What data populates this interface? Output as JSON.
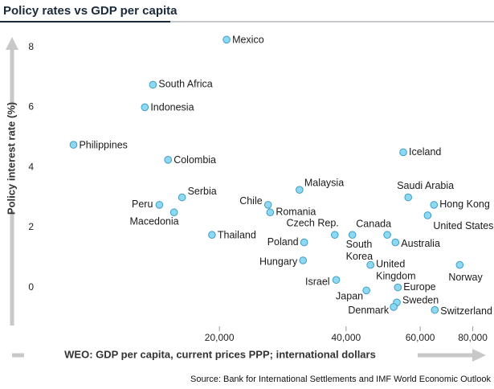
{
  "chart_data": {
    "type": "scatter",
    "title": "Policy rates vs GDP per capita",
    "x_label": "WEO: GDP per capita, current prices PPP; international dollars",
    "y_label": "Policy interest rate (%)",
    "source": "Source: Bank for International Settlements and IMF World Economic Outlook",
    "x_scale": "log",
    "color": "#8fd8f2",
    "xlim": [
      7500,
      86000
    ],
    "ylim": [
      -1,
      8.5
    ],
    "xticks": [
      {
        "value": 20000,
        "label": "20,000"
      },
      {
        "value": 40000,
        "label": "40,000"
      },
      {
        "value": 60000,
        "label": "60,000"
      },
      {
        "value": 80000,
        "label": "80,000"
      }
    ],
    "yticks": [
      0,
      2,
      4,
      6,
      8
    ],
    "labels": [
      "Mexico",
      "South Africa",
      "Indonesia",
      "Philippines",
      "Colombia",
      "Iceland",
      "Malaysia",
      "Saudi Arabia",
      "Hong Kong",
      "Serbia",
      "Peru",
      "Macedonia",
      "Chile",
      "Romania",
      "United States",
      "Thailand",
      "Czech Rep.",
      "South Korea",
      "Canada",
      "Australia",
      "Poland",
      "Hungary",
      "United Kingdom",
      "Norway",
      "Israel",
      "Japan",
      "Europe",
      "Sweden",
      "Denmark",
      "Switzerland"
    ],
    "x": [
      20800,
      13900,
      13300,
      9000,
      15100,
      54700,
      31000,
      56200,
      64700,
      16300,
      14400,
      15600,
      26100,
      26400,
      62500,
      19200,
      37600,
      41400,
      50100,
      52400,
      31800,
      31600,
      45700,
      74500,
      37900,
      44700,
      53100,
      52800,
      51900,
      65000
    ],
    "values": [
      8.25,
      6.75,
      6,
      4.75,
      4.25,
      4.5,
      3.25,
      3,
      2.75,
      3,
      2.75,
      2.5,
      2.75,
      2.5,
      2.4,
      1.75,
      1.75,
      1.75,
      1.75,
      1.5,
      1.5,
      0.9,
      0.75,
      0.75,
      0.25,
      -0.1,
      0,
      -0.5,
      -0.65,
      -0.75
    ]
  }
}
